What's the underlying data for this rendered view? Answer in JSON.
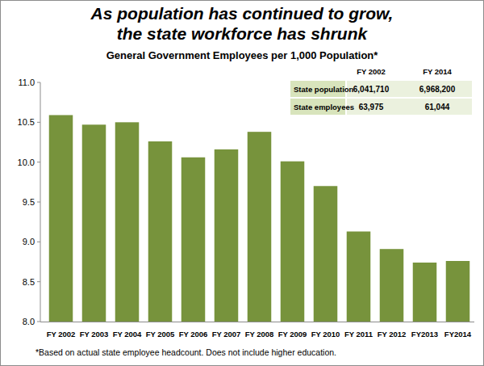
{
  "chart_data": {
    "type": "bar",
    "title": "As population has continued to grow, the state workforce has shrunk",
    "subtitle": "General Government Employees per 1,000 Population*",
    "categories": [
      "FY 2002",
      "FY 2003",
      "FY 2004",
      "FY 2005",
      "FY 2006",
      "FY 2007",
      "FY 2008",
      "FY 2009",
      "FY 2010",
      "FY 2011",
      "FY 2012",
      "FY2013",
      "FY2014"
    ],
    "values": [
      10.59,
      10.47,
      10.5,
      10.26,
      10.06,
      10.16,
      10.38,
      10.01,
      9.7,
      9.13,
      8.91,
      8.74,
      8.76
    ],
    "color": "#77933c",
    "ylim": [
      8,
      11
    ],
    "yticks": [
      {
        "value": 8,
        "label": "8.0"
      },
      8.5,
      {
        "value": 9,
        "label": "9.0"
      },
      9.5,
      {
        "value": 10,
        "label": "10.0"
      },
      10.5,
      {
        "value": 11,
        "label": "11.0"
      }
    ],
    "grid": false,
    "annotations": [
      "*Based on actual state employee headcount. Does  not include higher education."
    ]
  },
  "table": {
    "columns": [
      "FY 2002",
      "FY 2014"
    ],
    "rows": [
      [
        "State population",
        "6,041,710",
        "6,968,200"
      ],
      [
        "State employees",
        "63,975",
        "61,044"
      ]
    ]
  }
}
